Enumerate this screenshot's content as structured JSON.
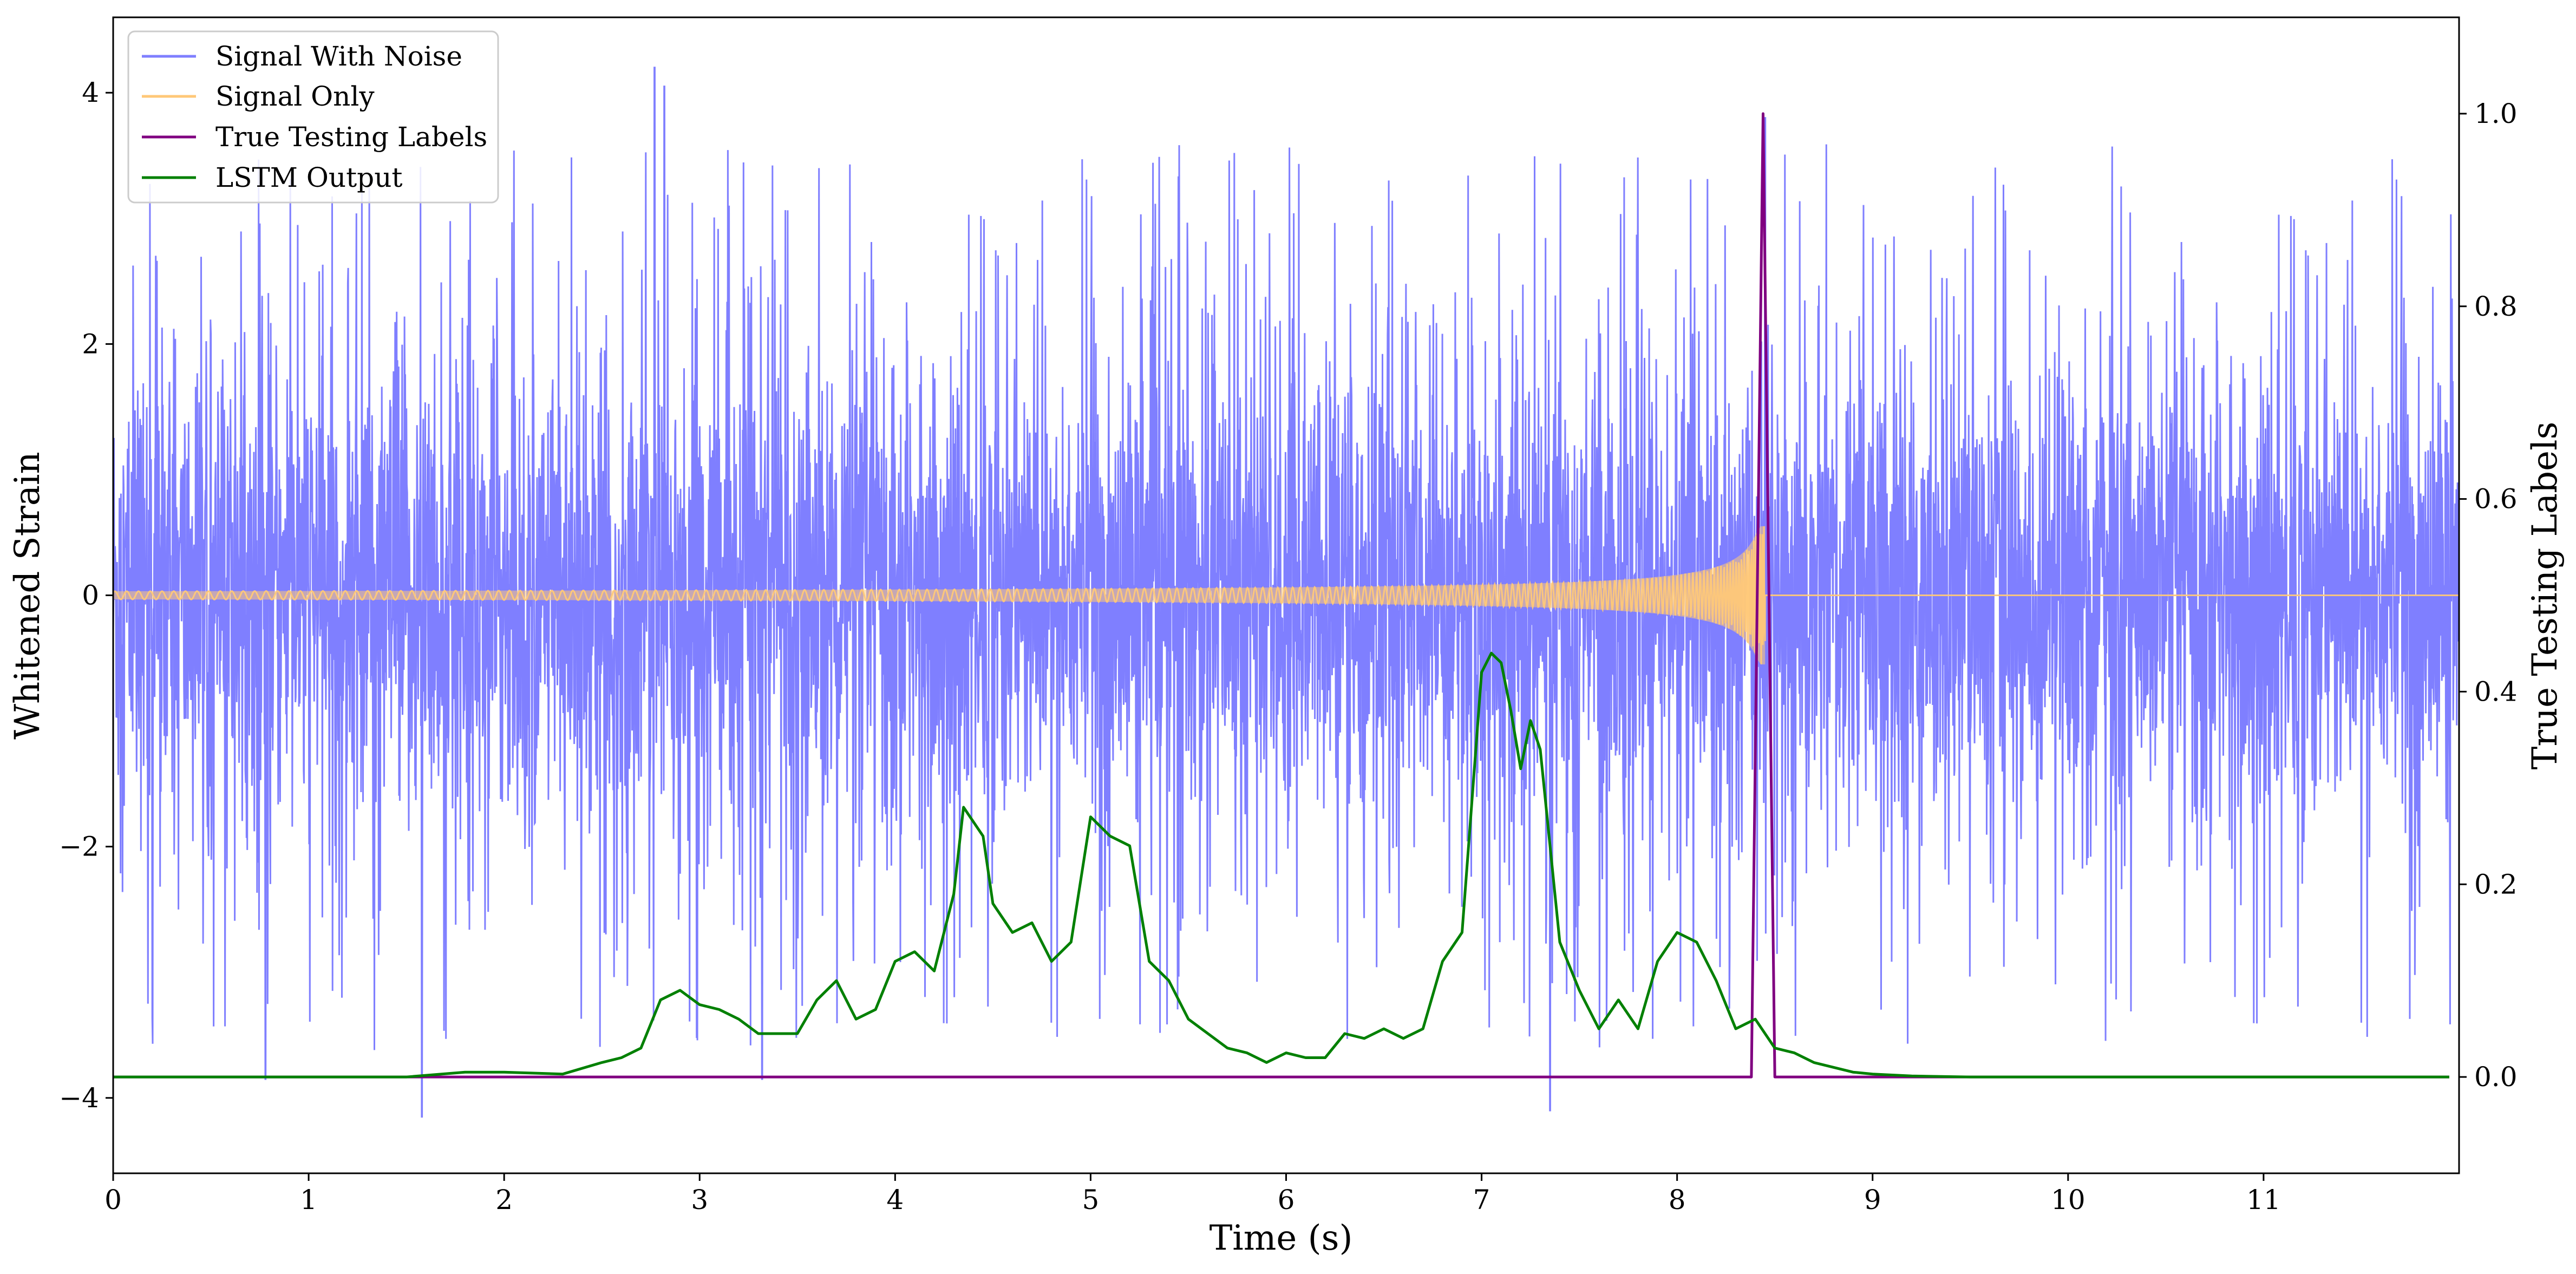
{
  "chart_data": {
    "type": "line",
    "title": "",
    "xlabel": "Time (s)",
    "ylabel": "Whitened Strain",
    "y2label": "True Testing Labels",
    "xlim": [
      0,
      12
    ],
    "ylim": [
      -4.6,
      4.6
    ],
    "y2lim": [
      -0.1,
      1.1
    ],
    "x_ticks": [
      0,
      1,
      2,
      3,
      4,
      5,
      6,
      7,
      8,
      9,
      10,
      11
    ],
    "x_tick_labels": [
      "0",
      "1",
      "2",
      "3",
      "4",
      "5",
      "6",
      "7",
      "8",
      "9",
      "10",
      "11"
    ],
    "y_ticks": [
      -4,
      -2,
      0,
      2,
      4
    ],
    "y_tick_labels": [
      "−4",
      "−2",
      "0",
      "2",
      "4"
    ],
    "y2_ticks": [
      0.0,
      0.2,
      0.4,
      0.6,
      0.8,
      1.0
    ],
    "y2_tick_labels": [
      "0.0",
      "0.2",
      "0.4",
      "0.6",
      "0.8",
      "1.0"
    ],
    "grid": false,
    "legend_position": "top-left",
    "series": [
      {
        "name": "Signal With Noise",
        "axis": "left",
        "color": "#7f7fff",
        "description_values": {
          "x_range": [
            0,
            12
          ],
          "typical_envelope": [
            -1.8,
            1.8
          ],
          "peak_spikes": [
            [
              0.78,
              -3.85
            ],
            [
              1.58,
              -4.15
            ],
            [
              2.77,
              4.2
            ],
            [
              2.82,
              4.05
            ],
            [
              3.32,
              -3.85
            ],
            [
              7.35,
              -4.1
            ],
            [
              8.45,
              3.8
            ]
          ]
        }
      },
      {
        "name": "Signal Only",
        "axis": "left",
        "color": "#ffc878",
        "description_values": {
          "x_range": [
            0,
            12
          ],
          "amplitude_start": 0.03,
          "amplitude_at_8": 0.18,
          "amplitude_peak": 0.55,
          "merger_time": 8.45,
          "after_merger": 0
        }
      },
      {
        "name": "True Testing Labels",
        "axis": "right",
        "color": "#800080",
        "x": [
          0,
          8.38,
          8.44,
          8.5,
          11.95
        ],
        "y": [
          0,
          0,
          1.0,
          0,
          0
        ]
      },
      {
        "name": "LSTM Output",
        "axis": "right",
        "color": "#008000",
        "x": [
          0,
          1.5,
          1.8,
          2.0,
          2.3,
          2.5,
          2.6,
          2.7,
          2.8,
          2.9,
          3.0,
          3.1,
          3.2,
          3.3,
          3.5,
          3.6,
          3.7,
          3.8,
          3.9,
          4.0,
          4.1,
          4.2,
          4.3,
          4.35,
          4.45,
          4.5,
          4.6,
          4.7,
          4.8,
          4.9,
          5.0,
          5.1,
          5.2,
          5.3,
          5.4,
          5.5,
          5.6,
          5.7,
          5.8,
          5.9,
          6.0,
          6.1,
          6.2,
          6.3,
          6.4,
          6.5,
          6.6,
          6.7,
          6.8,
          6.9,
          7.0,
          7.05,
          7.1,
          7.15,
          7.2,
          7.25,
          7.3,
          7.35,
          7.4,
          7.5,
          7.6,
          7.7,
          7.8,
          7.9,
          8.0,
          8.1,
          8.2,
          8.3,
          8.4,
          8.5,
          8.6,
          8.7,
          8.8,
          8.9,
          9.0,
          9.2,
          9.5,
          10,
          11,
          11.95
        ],
        "y": [
          0.0,
          0.0,
          0.005,
          0.005,
          0.003,
          0.015,
          0.02,
          0.03,
          0.08,
          0.09,
          0.075,
          0.07,
          0.06,
          0.045,
          0.045,
          0.08,
          0.1,
          0.06,
          0.07,
          0.12,
          0.13,
          0.11,
          0.19,
          0.28,
          0.25,
          0.18,
          0.15,
          0.16,
          0.12,
          0.14,
          0.27,
          0.25,
          0.24,
          0.12,
          0.1,
          0.06,
          0.045,
          0.03,
          0.025,
          0.015,
          0.025,
          0.02,
          0.02,
          0.045,
          0.04,
          0.05,
          0.04,
          0.05,
          0.12,
          0.15,
          0.42,
          0.44,
          0.43,
          0.38,
          0.32,
          0.37,
          0.34,
          0.24,
          0.14,
          0.09,
          0.05,
          0.08,
          0.05,
          0.12,
          0.15,
          0.14,
          0.1,
          0.05,
          0.06,
          0.03,
          0.025,
          0.015,
          0.01,
          0.005,
          0.003,
          0.001,
          0.0,
          0.0,
          0.0,
          0.0
        ]
      }
    ]
  }
}
